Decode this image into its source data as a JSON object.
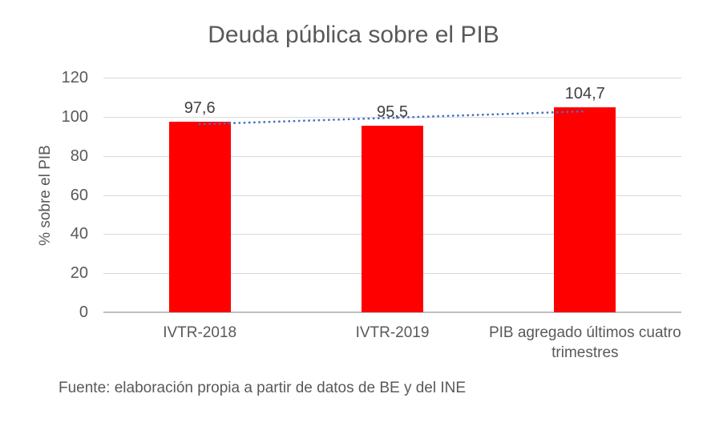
{
  "chart_data": {
    "type": "bar",
    "title": "Deuda pública sobre el PIB",
    "ylabel": "% sobre el PIB",
    "xlabel": "",
    "categories": [
      "IVTR-2018",
      "IVTR-2019",
      "PIB agregado últimos cuatro trimestres"
    ],
    "values": [
      97.6,
      95.5,
      104.7
    ],
    "data_labels": [
      "97,6",
      "95,5",
      "104,7"
    ],
    "ylim": [
      0,
      120
    ],
    "yticks": [
      0,
      20,
      40,
      60,
      80,
      100,
      120
    ],
    "grid": true,
    "legend": "none",
    "bar_color": "#FF0000",
    "text_color": "#595959",
    "data_label_color": "#404040",
    "gridline_color": "#D9D9D9",
    "axis_line_color": "#BFBFBF",
    "trendline": {
      "style": "dotted",
      "color": "#4472C4",
      "start_value": 96.2,
      "end_value": 102.8
    }
  },
  "footer": {
    "source_note": "Fuente: elaboración propia a partir de datos de BE y del INE"
  }
}
